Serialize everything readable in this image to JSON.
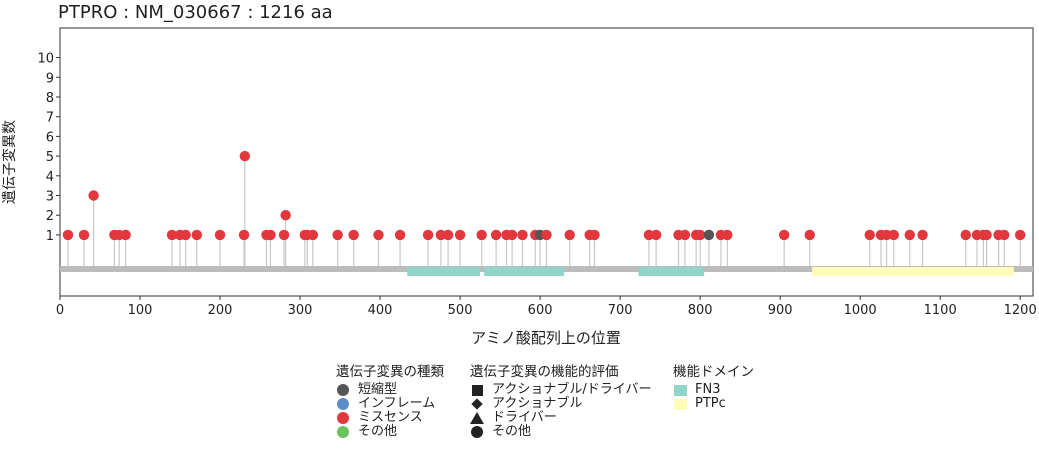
{
  "chart_data": {
    "type": "lollipop",
    "title": "PTPRO : NM_030667 : 1216 aa",
    "xlabel": "アミノ酸配列上の位置",
    "ylabel": "遺伝子変異数",
    "xlim": [
      0,
      1216
    ],
    "ylim": [
      -2.1,
      11.5
    ],
    "x_ticks": [
      0,
      100,
      200,
      300,
      400,
      500,
      600,
      700,
      800,
      900,
      1000,
      1100,
      1200
    ],
    "y_ticks": [
      1,
      2,
      3,
      4,
      5,
      6,
      7,
      8,
      9,
      10
    ],
    "protein_length": 1216,
    "domains": [
      {
        "name": "FN3",
        "start": 434,
        "end": 525,
        "color": "#8fd6c8"
      },
      {
        "name": "FN3",
        "start": 530,
        "end": 630,
        "color": "#8fd6c8"
      },
      {
        "name": "FN3",
        "start": 723,
        "end": 805,
        "color": "#8fd6c8"
      },
      {
        "name": "PTPc",
        "start": 940,
        "end": 1192,
        "color": "#fdfdb9"
      }
    ],
    "mutations": [
      {
        "x": 10,
        "count": 1,
        "type": "missense"
      },
      {
        "x": 30,
        "count": 1,
        "type": "missense"
      },
      {
        "x": 42,
        "count": 3,
        "type": "missense"
      },
      {
        "x": 68,
        "count": 1,
        "type": "missense"
      },
      {
        "x": 74,
        "count": 1,
        "type": "missense"
      },
      {
        "x": 82,
        "count": 1,
        "type": "missense"
      },
      {
        "x": 140,
        "count": 1,
        "type": "missense"
      },
      {
        "x": 150,
        "count": 1,
        "type": "missense"
      },
      {
        "x": 157,
        "count": 1,
        "type": "missense"
      },
      {
        "x": 171,
        "count": 1,
        "type": "missense"
      },
      {
        "x": 200,
        "count": 1,
        "type": "missense"
      },
      {
        "x": 230,
        "count": 1,
        "type": "missense"
      },
      {
        "x": 231,
        "count": 5,
        "type": "missense"
      },
      {
        "x": 258,
        "count": 1,
        "type": "missense"
      },
      {
        "x": 263,
        "count": 1,
        "type": "missense"
      },
      {
        "x": 280,
        "count": 1,
        "type": "missense"
      },
      {
        "x": 282,
        "count": 2,
        "type": "missense"
      },
      {
        "x": 306,
        "count": 1,
        "type": "missense"
      },
      {
        "x": 309,
        "count": 1,
        "type": "missense"
      },
      {
        "x": 316,
        "count": 1,
        "type": "missense"
      },
      {
        "x": 347,
        "count": 1,
        "type": "missense"
      },
      {
        "x": 367,
        "count": 1,
        "type": "missense"
      },
      {
        "x": 398,
        "count": 1,
        "type": "missense"
      },
      {
        "x": 425,
        "count": 1,
        "type": "missense"
      },
      {
        "x": 460,
        "count": 1,
        "type": "missense"
      },
      {
        "x": 476,
        "count": 1,
        "type": "missense"
      },
      {
        "x": 485,
        "count": 1,
        "type": "missense"
      },
      {
        "x": 500,
        "count": 1,
        "type": "missense"
      },
      {
        "x": 527,
        "count": 1,
        "type": "missense"
      },
      {
        "x": 545,
        "count": 1,
        "type": "missense"
      },
      {
        "x": 558,
        "count": 1,
        "type": "missense"
      },
      {
        "x": 565,
        "count": 1,
        "type": "missense"
      },
      {
        "x": 578,
        "count": 1,
        "type": "missense"
      },
      {
        "x": 594,
        "count": 1,
        "type": "missense"
      },
      {
        "x": 600,
        "count": 1,
        "type": "truncating"
      },
      {
        "x": 608,
        "count": 1,
        "type": "missense"
      },
      {
        "x": 637,
        "count": 1,
        "type": "missense"
      },
      {
        "x": 662,
        "count": 1,
        "type": "missense"
      },
      {
        "x": 668,
        "count": 1,
        "type": "missense"
      },
      {
        "x": 736,
        "count": 1,
        "type": "missense"
      },
      {
        "x": 745,
        "count": 1,
        "type": "missense"
      },
      {
        "x": 773,
        "count": 1,
        "type": "missense"
      },
      {
        "x": 781,
        "count": 1,
        "type": "missense"
      },
      {
        "x": 795,
        "count": 1,
        "type": "missense"
      },
      {
        "x": 800,
        "count": 1,
        "type": "missense"
      },
      {
        "x": 811,
        "count": 1,
        "type": "truncating"
      },
      {
        "x": 826,
        "count": 1,
        "type": "missense"
      },
      {
        "x": 834,
        "count": 1,
        "type": "missense"
      },
      {
        "x": 905,
        "count": 1,
        "type": "missense"
      },
      {
        "x": 937,
        "count": 1,
        "type": "missense"
      },
      {
        "x": 1012,
        "count": 1,
        "type": "missense"
      },
      {
        "x": 1026,
        "count": 1,
        "type": "missense"
      },
      {
        "x": 1033,
        "count": 1,
        "type": "missense"
      },
      {
        "x": 1042,
        "count": 1,
        "type": "missense"
      },
      {
        "x": 1062,
        "count": 1,
        "type": "missense"
      },
      {
        "x": 1078,
        "count": 1,
        "type": "missense"
      },
      {
        "x": 1132,
        "count": 1,
        "type": "missense"
      },
      {
        "x": 1146,
        "count": 1,
        "type": "missense"
      },
      {
        "x": 1154,
        "count": 1,
        "type": "missense"
      },
      {
        "x": 1158,
        "count": 1,
        "type": "missense"
      },
      {
        "x": 1173,
        "count": 1,
        "type": "missense"
      },
      {
        "x": 1180,
        "count": 1,
        "type": "missense"
      },
      {
        "x": 1200,
        "count": 1,
        "type": "missense"
      }
    ],
    "colors": {
      "truncating": "#555555",
      "inframe": "#5b8fcc",
      "missense": "#e2383d",
      "other": "#6ac35f",
      "stem": "#c8c8c8",
      "backbone": "#bcbcbc"
    },
    "legend": {
      "mutation_type": {
        "title": "遺伝子変異の種類",
        "items": [
          {
            "key": "truncating",
            "label": "短縮型",
            "color": "#555555"
          },
          {
            "key": "inframe",
            "label": "インフレーム",
            "color": "#5b8fcc"
          },
          {
            "key": "missense",
            "label": "ミスセンス",
            "color": "#e2383d"
          },
          {
            "key": "other",
            "label": "その他",
            "color": "#6ac35f"
          }
        ]
      },
      "functional": {
        "title": "遺伝子変異の機能的評価",
        "items": [
          {
            "label": "アクショナブル/ドライバー",
            "shape": "square"
          },
          {
            "label": "アクショナブル",
            "shape": "diamond"
          },
          {
            "label": "ドライバー",
            "shape": "triangle"
          },
          {
            "label": "その他",
            "shape": "circle"
          }
        ]
      },
      "domain": {
        "title": "機能ドメイン",
        "items": [
          {
            "label": "FN3",
            "color": "#8fd6c8"
          },
          {
            "label": "PTPc",
            "color": "#fdfdb9"
          }
        ]
      }
    }
  }
}
